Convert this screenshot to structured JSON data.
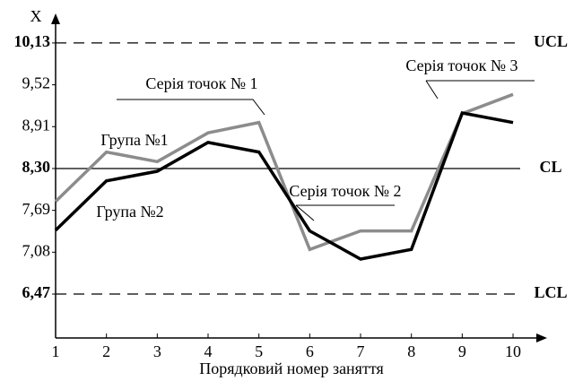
{
  "chart_data": {
    "type": "line",
    "y_axis_label": "X",
    "x_axis_label": "Порядковий номер заняття",
    "x": [
      1,
      2,
      3,
      4,
      5,
      6,
      7,
      8,
      9,
      10
    ],
    "xlim": [
      1,
      10.67
    ],
    "xticks": [
      1,
      2,
      3,
      4,
      5,
      6,
      7,
      8,
      9,
      10
    ],
    "ylim": [
      5.83,
      10.56
    ],
    "yticks": [
      {
        "value": 6.47,
        "label": "6,47"
      },
      {
        "value": 7.08,
        "label": "7,08"
      },
      {
        "value": 7.69,
        "label": "7,69"
      },
      {
        "value": 8.3,
        "label": "8,30"
      },
      {
        "value": 8.91,
        "label": "8,91"
      },
      {
        "value": 9.52,
        "label": "9,52"
      },
      {
        "value": 10.13,
        "label": "10,13"
      }
    ],
    "series": [
      {
        "name": "Група №1",
        "color": "#8c8c8c",
        "values": [
          7.82,
          8.54,
          8.4,
          8.82,
          8.97,
          7.12,
          7.39,
          7.39,
          9.1,
          9.38
        ]
      },
      {
        "name": "Група №2",
        "color": "#000000",
        "values": [
          7.4,
          8.12,
          8.26,
          8.68,
          8.54,
          7.39,
          6.98,
          7.12,
          9.11,
          8.97
        ]
      }
    ],
    "control_lines": [
      {
        "label": "UCL",
        "value": 10.13,
        "style": "dashed"
      },
      {
        "label": "CL",
        "value": 8.3,
        "style": "solid"
      },
      {
        "label": "LCL",
        "value": 6.47,
        "style": "dashed"
      }
    ],
    "annotations": [
      {
        "text": "Серія точок № 1"
      },
      {
        "text": "Серія точок № 2"
      },
      {
        "text": "Серія точок № 3"
      }
    ]
  }
}
